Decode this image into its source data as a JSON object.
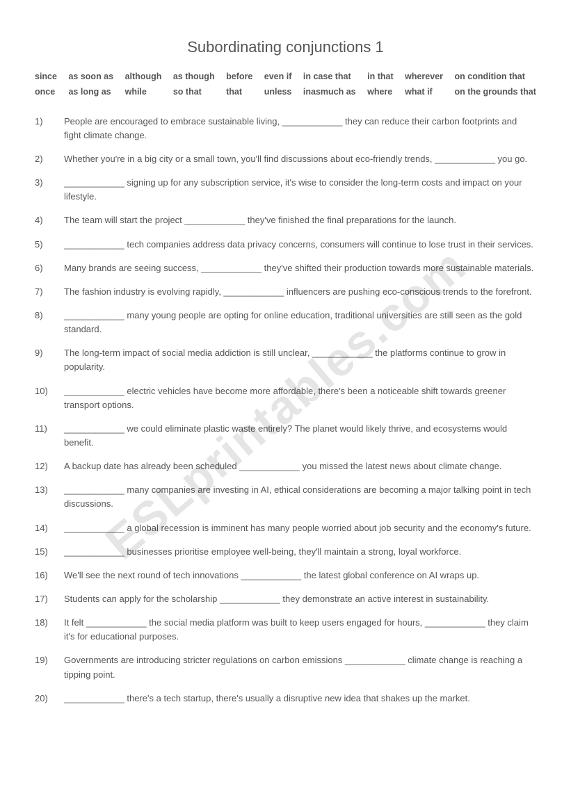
{
  "title": "Subordinating conjunctions 1",
  "watermark": "ESLprintables.com",
  "wordBank": {
    "row1": [
      "since",
      "as soon as",
      "although",
      "as though",
      "before",
      "even if",
      "in case that",
      "in that",
      "wherever",
      "on condition that"
    ],
    "row2": [
      "once",
      "as long as",
      "while",
      "so that",
      "that",
      "unless",
      "inasmuch as",
      "where",
      "what if",
      "on the grounds that"
    ]
  },
  "questions": [
    {
      "num": "1)",
      "text": "People are encouraged to embrace sustainable living, ____________ they can reduce their carbon footprints and fight climate change."
    },
    {
      "num": "2)",
      "text": "Whether you're in a big city or a small town, you'll find discussions about eco-friendly trends, ____________ you go."
    },
    {
      "num": "3)",
      "text": "____________ signing up for any subscription service, it's wise to consider the long-term costs and impact on your lifestyle."
    },
    {
      "num": "4)",
      "text": "The team will start the project ____________ they've finished the final preparations for the launch."
    },
    {
      "num": "5)",
      "text": "____________ tech companies address data privacy concerns, consumers will continue to lose trust in their services."
    },
    {
      "num": "6)",
      "text": "Many brands are seeing success, ____________ they've shifted their production towards more sustainable materials."
    },
    {
      "num": "7)",
      "text": "The fashion industry is evolving rapidly, ____________ influencers are pushing eco-conscious trends to the forefront."
    },
    {
      "num": "8)",
      "text": "____________ many young people are opting for online education, traditional universities are still seen as the gold standard."
    },
    {
      "num": "9)",
      "text": "The long-term impact of social media addiction is still unclear, ____________ the platforms continue to grow in popularity."
    },
    {
      "num": "10)",
      "text": "____________ electric vehicles have become more affordable, there's been a noticeable shift towards greener transport options."
    },
    {
      "num": "11)",
      "text": "____________ we could eliminate plastic waste entirely? The planet would likely thrive, and ecosystems would benefit."
    },
    {
      "num": "12)",
      "text": "A backup date has already been scheduled ____________ you missed the latest news about climate change."
    },
    {
      "num": "13)",
      "text": "____________ many companies are investing in AI, ethical considerations are becoming a major talking point in tech discussions."
    },
    {
      "num": "14)",
      "text": "____________ a global recession is imminent has many people worried about job security and the economy's future."
    },
    {
      "num": "15)",
      "text": "____________ businesses prioritise employee well-being, they'll maintain a strong, loyal workforce."
    },
    {
      "num": "16)",
      "text": "We'll see the next round of tech innovations ____________ the latest global conference on AI wraps up."
    },
    {
      "num": "17)",
      "text": "Students can apply for the scholarship ____________ they demonstrate an active interest in sustainability."
    },
    {
      "num": "18)",
      "text": "It felt ____________ the social media platform was built to keep users engaged for hours, ____________ they claim it's for educational purposes."
    },
    {
      "num": "19)",
      "text": "Governments are introducing stricter regulations on carbon emissions ____________ climate change is reaching a tipping point."
    },
    {
      "num": "20)",
      "text": "____________ there's a tech startup, there's usually a disruptive new idea that shakes up the market."
    }
  ]
}
